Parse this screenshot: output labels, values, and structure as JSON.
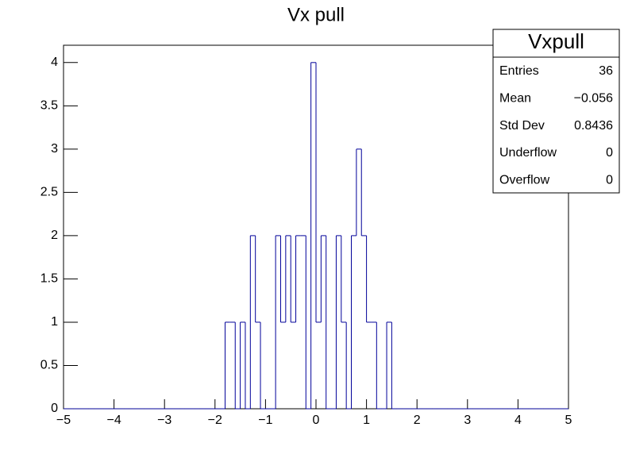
{
  "chart_data": {
    "type": "histogram",
    "title": "Vx pull",
    "color": "#000099",
    "bins": [
      -5,
      -4.9,
      -4.8,
      -4.7,
      -4.6,
      -4.5,
      -4.4,
      -4.3,
      -4.2,
      -4.1,
      -4,
      -3.9,
      -3.8,
      -3.7,
      -3.6,
      -3.5,
      -3.4,
      -3.3,
      -3.2,
      -3.1,
      -3,
      -2.9,
      -2.8,
      -2.7,
      -2.6,
      -2.5,
      -2.4,
      -2.3,
      -2.2,
      -2.1,
      -2,
      -1.9,
      -1.8,
      -1.7,
      -1.6,
      -1.5,
      -1.4,
      -1.3,
      -1.2,
      -1.1,
      -1,
      -0.9,
      -0.8,
      -0.7,
      -0.6,
      -0.5,
      -0.4,
      -0.3,
      -0.2,
      -0.1,
      0,
      0.1,
      0.2,
      0.3,
      0.4,
      0.5,
      0.6,
      0.7,
      0.8,
      0.9,
      1,
      1.1,
      1.2,
      1.3,
      1.4,
      1.5,
      1.6,
      1.7,
      1.8,
      1.9,
      2,
      2.1,
      2.2,
      2.3,
      2.4,
      2.5,
      2.6,
      2.7,
      2.8,
      2.9,
      3,
      3.1,
      3.2,
      3.3,
      3.4,
      3.5,
      3.6,
      3.7,
      3.8,
      3.9,
      4,
      4.1,
      4.2,
      4.3,
      4.4,
      4.5,
      4.6,
      4.7,
      4.8,
      4.9,
      5
    ],
    "values": [
      0,
      0,
      0,
      0,
      0,
      0,
      0,
      0,
      0,
      0,
      0,
      0,
      0,
      0,
      0,
      0,
      0,
      0,
      0,
      0,
      0,
      0,
      0,
      0,
      0,
      0,
      0,
      0,
      0,
      0,
      0,
      0,
      1,
      1,
      0,
      1,
      0,
      2,
      1,
      0,
      0,
      0,
      2,
      1,
      2,
      1,
      2,
      2,
      0,
      4,
      1,
      2,
      0,
      0,
      2,
      1,
      0,
      2,
      3,
      2,
      1,
      1,
      0,
      0,
      1,
      0,
      0,
      0,
      0,
      0,
      0,
      0,
      0,
      0,
      0,
      0,
      0,
      0,
      0,
      0,
      0,
      0,
      0,
      0,
      0,
      0,
      0,
      0,
      0,
      0,
      0,
      0,
      0,
      0,
      0,
      0,
      0,
      0,
      0,
      0
    ],
    "xlim": [
      -5,
      5
    ],
    "ylim": [
      0,
      4.2
    ],
    "xticks": [
      {
        "value": -5,
        "label": "−5"
      },
      {
        "value": -4,
        "label": "−4"
      },
      {
        "value": -3,
        "label": "−3"
      },
      {
        "value": -2,
        "label": "−2"
      },
      {
        "value": -1,
        "label": "−1"
      },
      0,
      1,
      2,
      3,
      4,
      5
    ],
    "yticks": [
      0,
      0.5,
      1,
      1.5,
      2,
      2.5,
      3,
      3.5,
      4
    ],
    "stats_box": {
      "title": "Vxpull",
      "rows": [
        [
          "Entries",
          "36"
        ],
        [
          "Mean",
          "−0.056"
        ],
        [
          "Std Dev",
          "0.8436"
        ],
        [
          "Underflow",
          "0"
        ],
        [
          "Overflow",
          "0"
        ]
      ]
    }
  }
}
